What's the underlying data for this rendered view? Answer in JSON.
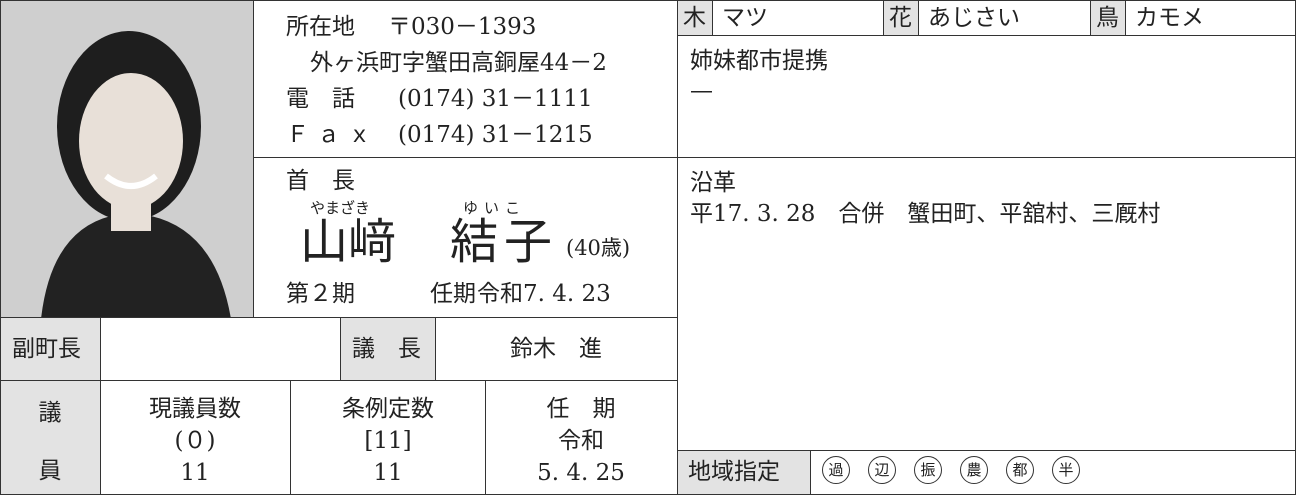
{
  "address": {
    "label": "所在地",
    "postal": "〒030－1393",
    "street": "外ヶ浜町字蟹田高銅屋44－2",
    "phone_label": "電　話",
    "phone": "(0174) 31－1111",
    "fax_label": "Ｆａｘ",
    "fax": "(0174) 31－1215"
  },
  "mayor": {
    "label": "首　長",
    "surname_reading": "やまざき",
    "given_reading": "ゆいこ",
    "surname": "山﨑",
    "given": "結子",
    "age": "(40歳)",
    "term_number": "第２期",
    "term_label": "任期",
    "term_end": "令和7. 4. 23"
  },
  "officials": {
    "deputy_label": "副町長",
    "chair_label": "議　長",
    "chair": "鈴木　進"
  },
  "assembly": {
    "label_top": "議",
    "label_bottom": "員",
    "current_label": "現議員数",
    "vacancies": "(０)",
    "current": "11",
    "quota_label": "条例定数",
    "quota_bracket": "[11]",
    "quota": "11",
    "term_label": "任　期",
    "term_era": "令和",
    "term_end": "5. 4. 25"
  },
  "symbols": {
    "tree_label": "木",
    "tree": "マツ",
    "flower_label": "花",
    "flower": "あじさい",
    "bird_label": "鳥",
    "bird": "カモメ"
  },
  "sister_cities": {
    "label": "姉妹都市提携",
    "value": "—"
  },
  "history": {
    "label": "沿革",
    "entry": "平17. 3. 28　合併　蟹田町、平舘村、三厩村"
  },
  "region_designation": {
    "label": "地域指定",
    "items": [
      "過",
      "辺",
      "振",
      "農",
      "都",
      "半"
    ]
  }
}
